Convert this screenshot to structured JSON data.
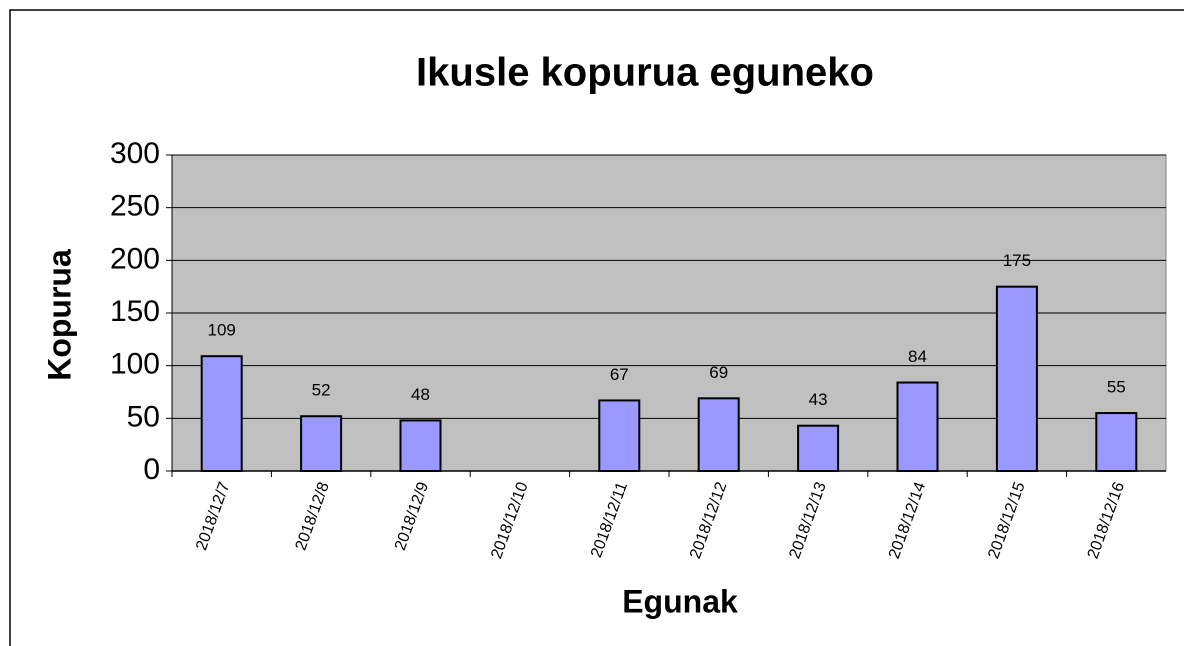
{
  "chart_data": {
    "type": "bar",
    "title": "Ikusle kopurua eguneko",
    "x_label": "Egunak",
    "y_label": "Kopurua",
    "categories": [
      "2018/12/7",
      "2018/12/8",
      "2018/12/9",
      "2018/12/10",
      "2018/12/11",
      "2018/12/12",
      "2018/12/13",
      "2018/12/14",
      "2018/12/15",
      "2018/12/16"
    ],
    "values": [
      109,
      52,
      48,
      null,
      67,
      69,
      43,
      84,
      175,
      55
    ],
    "color": "#9999ff",
    "plot_background": "#c0c0c0",
    "ylim": [
      0,
      300
    ],
    "yticks": [
      0,
      50,
      100,
      150,
      200,
      250,
      300
    ],
    "grid": true
  }
}
